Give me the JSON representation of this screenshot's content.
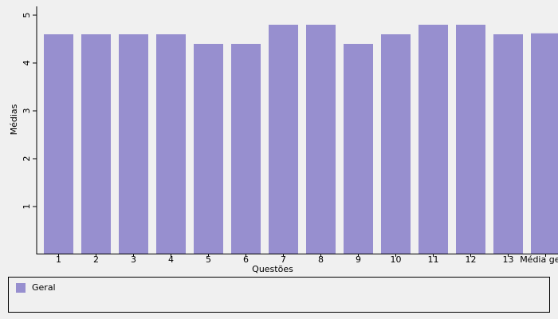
{
  "chart_data": {
    "type": "bar",
    "x_label": "Questões",
    "y_label": "Médias",
    "categories": [
      "1",
      "2",
      "3",
      "4",
      "5",
      "6",
      "7",
      "8",
      "9",
      "10",
      "11",
      "12",
      "13",
      "Média geral"
    ],
    "series": [
      {
        "name": "Geral",
        "color": "#978fcf",
        "values": [
          4.6,
          4.6,
          4.6,
          4.6,
          4.4,
          4.4,
          4.8,
          4.8,
          4.4,
          4.6,
          4.8,
          4.8,
          4.6,
          4.62
        ]
      }
    ],
    "ylim": [
      0,
      5
    ],
    "yticks": [
      1,
      2,
      3,
      4,
      5
    ],
    "grid": false,
    "legend": "bottom"
  }
}
